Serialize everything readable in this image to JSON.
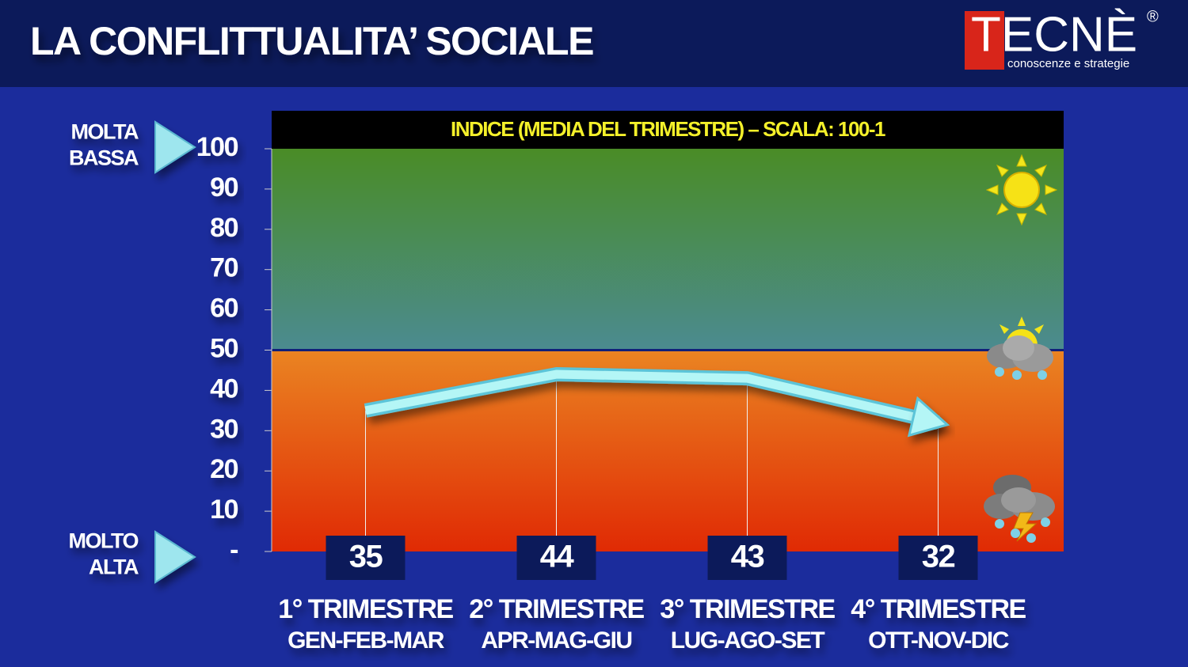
{
  "header": {
    "title": "LA CONFLITTUALITA’ SOCIALE",
    "logo": "TECNÈ",
    "logo_mark": "®",
    "logo_tagline": "conoscenze e strategie"
  },
  "chart_data": {
    "type": "line",
    "subtitle": "INDICE (MEDIA DEL TRIMESTRE) – SCALA: 100-1",
    "top_label": [
      "MOLTA",
      "BASSA"
    ],
    "bottom_label": [
      "MOLTO",
      "ALTA"
    ],
    "categories": [
      "1° TRIMESTRE",
      "2° TRIMESTRE",
      "3° TRIMESTRE",
      "4° TRIMESTRE"
    ],
    "periods": [
      "GEN-FEB-MAR",
      "APR-MAG-GIU",
      "LUG-AGO-SET",
      "OTT-NOV-DIC"
    ],
    "values": [
      35,
      44,
      43,
      32
    ],
    "color": "#b4f6f6",
    "threshold": 50,
    "ylim": [
      0,
      100
    ],
    "yticks": [
      {
        "value": 0,
        "label": "-"
      },
      10,
      20,
      30,
      40,
      50,
      60,
      70,
      80,
      90,
      100
    ]
  }
}
